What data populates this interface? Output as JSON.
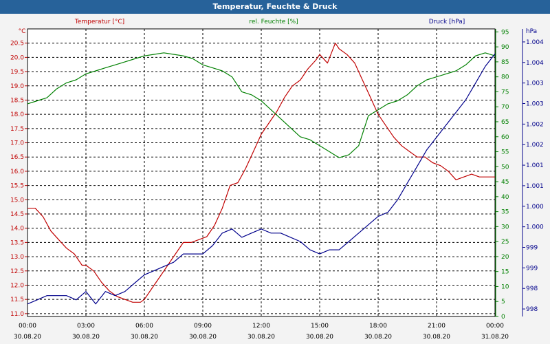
{
  "title": "Temperatur, Feuchte & Druck",
  "colors": {
    "temperature": "#c00000",
    "humidity": "#008000",
    "pressure": "#00008b",
    "titlebar": "#27629a",
    "plot_bg": "#ffffff"
  },
  "chart_data": {
    "type": "line",
    "title": "Temperatur, Feuchte & Druck",
    "x_labels": [
      {
        "time": "00:00",
        "date": "30.08.20"
      },
      {
        "time": "03:00",
        "date": "30.08.20"
      },
      {
        "time": "06:00",
        "date": "30.08.20"
      },
      {
        "time": "09:00",
        "date": "30.08.20"
      },
      {
        "time": "12:00",
        "date": "30.08.20"
      },
      {
        "time": "15:00",
        "date": "30.08.20"
      },
      {
        "time": "18:00",
        "date": "30.08.20"
      },
      {
        "time": "21:00",
        "date": "30.08.20"
      },
      {
        "time": "00:00",
        "date": "31.08.20"
      }
    ],
    "xlim": [
      0,
      24
    ],
    "grid": true,
    "axes": {
      "temperature": {
        "label": "Temperatur [°C]",
        "unit": "°C",
        "ylim": [
          10.9,
          21.0
        ],
        "ticks": [
          "11.0",
          "11.5",
          "12.0",
          "12.5",
          "13.0",
          "13.5",
          "14.0",
          "14.5",
          "15.0",
          "15.5",
          "16.0",
          "16.5",
          "17.0",
          "17.5",
          "18.0",
          "18.5",
          "19.0",
          "19.5",
          "20.0",
          "20.5"
        ]
      },
      "humidity": {
        "label": "rel. Feuchte [%]",
        "ylim": [
          0,
          96
        ],
        "ticks": [
          "0",
          "5",
          "10",
          "15",
          "20",
          "25",
          "30",
          "35",
          "40",
          "45",
          "50",
          "55",
          "60",
          "65",
          "70",
          "75",
          "80",
          "85",
          "90",
          "95"
        ]
      },
      "pressure": {
        "label": "Druck [hPa]",
        "unit": "hPa",
        "ylim": [
          997.8,
          1004.7
        ],
        "ticks": [
          "998",
          "998",
          "999",
          "999",
          "1.000",
          "1.000",
          "1.001",
          "1.001",
          "1.002",
          "1.002",
          "1.003",
          "1.003",
          "1.004",
          "1.004"
        ]
      }
    },
    "series": [
      {
        "name": "Temperatur [°C]",
        "axis": "temperature",
        "x": [
          0,
          0.4,
          0.8,
          1.2,
          1.6,
          2,
          2.4,
          2.8,
          3,
          3.4,
          3.8,
          4.2,
          4.6,
          5,
          5.4,
          5.8,
          6,
          6.4,
          6.8,
          7.2,
          7.6,
          8,
          8.4,
          8.8,
          9.2,
          9.6,
          10,
          10.4,
          10.8,
          11.2,
          11.6,
          12,
          12.4,
          12.8,
          13.2,
          13.6,
          14,
          14.4,
          14.8,
          15,
          15.4,
          15.8,
          16,
          16.4,
          16.8,
          17.2,
          17.6,
          18,
          18.4,
          18.8,
          19.2,
          19.6,
          20,
          20.4,
          20.8,
          21.2,
          21.6,
          22,
          22.4,
          22.8,
          23.2,
          23.6,
          24
        ],
        "y": [
          14.7,
          14.7,
          14.4,
          13.9,
          13.6,
          13.3,
          13.1,
          12.7,
          12.7,
          12.5,
          12.1,
          11.8,
          11.6,
          11.5,
          11.4,
          11.4,
          11.5,
          11.9,
          12.3,
          12.7,
          13.1,
          13.5,
          13.5,
          13.6,
          13.7,
          14.1,
          14.7,
          15.5,
          15.6,
          16.1,
          16.7,
          17.3,
          17.7,
          18.1,
          18.6,
          19.0,
          19.2,
          19.6,
          19.9,
          20.1,
          19.8,
          20.5,
          20.3,
          20.1,
          19.8,
          19.2,
          18.6,
          18.0,
          17.6,
          17.2,
          16.9,
          16.7,
          16.5,
          16.5,
          16.3,
          16.2,
          16.0,
          15.7,
          15.8,
          15.9,
          15.8,
          15.8,
          15.8
        ]
      },
      {
        "name": "rel. Feuchte [%]",
        "axis": "humidity",
        "x": [
          0,
          0.5,
          1,
          1.5,
          2,
          2.5,
          3,
          3.5,
          4,
          4.5,
          5,
          5.5,
          6,
          6.5,
          7,
          7.5,
          8,
          8.5,
          9,
          9.5,
          10,
          10.5,
          11,
          11.5,
          12,
          12.5,
          13,
          13.5,
          14,
          14.5,
          15,
          15.5,
          16,
          16.5,
          17,
          17.5,
          18,
          18.5,
          19,
          19.5,
          20,
          20.5,
          21,
          21.5,
          22,
          22.5,
          23,
          23.5,
          24
        ],
        "y": [
          71,
          72,
          73,
          76,
          78,
          79,
          81,
          82,
          83,
          84,
          85,
          86,
          87,
          87.5,
          88,
          87.5,
          87,
          86,
          84,
          83,
          82,
          80,
          75,
          74,
          72,
          69,
          66,
          63,
          60,
          59,
          57,
          55,
          53,
          54,
          57,
          67,
          69,
          71,
          72,
          74,
          77,
          79,
          80,
          81,
          82,
          84,
          87,
          88,
          87
        ]
      },
      {
        "name": "Druck [hPa]",
        "axis": "pressure",
        "x": [
          0,
          0.5,
          1,
          1.5,
          2,
          2.5,
          3,
          3.5,
          4,
          4.5,
          5,
          5.5,
          6,
          6.5,
          7,
          7.5,
          8,
          8.5,
          9,
          9.5,
          10,
          10.5,
          11,
          11.5,
          12,
          12.5,
          13,
          13.5,
          14,
          14.5,
          15,
          15.5,
          16,
          16.5,
          17,
          17.5,
          18,
          18.5,
          19,
          19.5,
          20,
          20.5,
          21,
          21.5,
          22,
          22.5,
          23,
          23.5,
          24
        ],
        "y": [
          998.1,
          998.2,
          998.3,
          998.3,
          998.3,
          998.2,
          998.4,
          998.1,
          998.4,
          998.3,
          998.4,
          998.6,
          998.8,
          998.9,
          999.0,
          999.1,
          999.3,
          999.3,
          999.3,
          999.5,
          999.8,
          999.9,
          999.7,
          999.8,
          999.9,
          999.8,
          999.8,
          999.7,
          999.6,
          999.4,
          999.3,
          999.4,
          999.4,
          999.6,
          999.8,
          1000.0,
          1000.2,
          1000.3,
          1000.6,
          1001.0,
          1001.4,
          1001.8,
          1002.1,
          1002.4,
          1002.7,
          1003.0,
          1003.4,
          1003.8,
          1004.1
        ]
      }
    ]
  }
}
